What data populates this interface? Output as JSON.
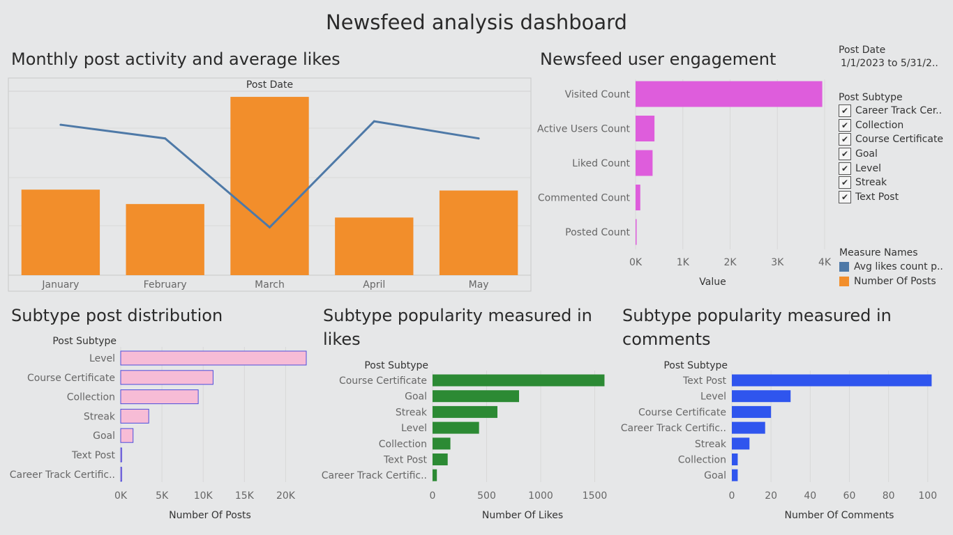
{
  "dashboard_title": "Newsfeed analysis dashboard",
  "filters": {
    "post_date_title": "Post Date",
    "post_date_value": "1/1/2023 to 5/31/2..",
    "subtype_title": "Post Subtype",
    "subtype_items": [
      {
        "label": "Career Track Cer..",
        "checked": true
      },
      {
        "label": "Collection",
        "checked": true
      },
      {
        "label": "Course Certificate",
        "checked": true
      },
      {
        "label": "Goal",
        "checked": true
      },
      {
        "label": "Level",
        "checked": true
      },
      {
        "label": "Streak",
        "checked": true
      },
      {
        "label": "Text Post",
        "checked": true
      }
    ],
    "check_glyph": "✔",
    "measure_names_title": "Measure Names",
    "measure_names": [
      {
        "label": "Avg likes count p..",
        "color": "#4e79a7"
      },
      {
        "label": "Number Of Posts",
        "color": "#f28e2b"
      }
    ]
  },
  "chart_data": [
    {
      "id": "monthly",
      "type": "bar",
      "title": "Monthly post activity and average likes",
      "header": "Post Date",
      "categories": [
        "January",
        "February",
        "March",
        "April",
        "May"
      ],
      "series": [
        {
          "name": "Number Of Posts",
          "values": [
            9500,
            7900,
            19800,
            6400,
            9400
          ],
          "color": "#f28e2b",
          "kind": "bar"
        },
        {
          "name": "Avg likes count p..",
          "values": [
            0.52,
            0.5,
            0.37,
            0.525,
            0.5
          ],
          "color": "#4e79a7",
          "kind": "line"
        }
      ],
      "ylim_bars": [
        0,
        20500
      ],
      "ylim_line": [
        0.3,
        0.57
      ],
      "grid": true
    },
    {
      "id": "engagement",
      "type": "bar",
      "orientation": "horizontal",
      "title": "Newsfeed user engagement",
      "categories": [
        "Visited Count",
        "Active Users Count",
        "Liked Count",
        "Commented Count",
        "Posted Count"
      ],
      "values": [
        3950,
        400,
        360,
        100,
        20
      ],
      "color": "#de5ddc",
      "xlim": [
        0,
        4000
      ],
      "xticks": [
        0,
        1000,
        2000,
        3000,
        4000
      ],
      "xtick_labels": [
        "0K",
        "1K",
        "2K",
        "3K",
        "4K"
      ],
      "xlabel": "Value"
    },
    {
      "id": "posts",
      "type": "bar",
      "orientation": "horizontal",
      "title": "Subtype post distribution",
      "header": "Post Subtype",
      "categories": [
        "Level",
        "Course Certificate",
        "Collection",
        "Streak",
        "Goal",
        "Text Post",
        "Career Track Certific.."
      ],
      "values": [
        22500,
        11200,
        9400,
        3400,
        1500,
        100,
        50
      ],
      "color": "#f7bcd6",
      "border": "#4d4ddb",
      "xlim": [
        0,
        22500
      ],
      "xticks": [
        0,
        5000,
        10000,
        15000,
        20000
      ],
      "xtick_labels": [
        "0K",
        "5K",
        "10K",
        "15K",
        "20K"
      ],
      "xlabel": "Number Of Posts"
    },
    {
      "id": "likes",
      "type": "bar",
      "orientation": "horizontal",
      "title": "Subtype popularity measured in likes",
      "header": "Post Subtype",
      "categories": [
        "Course Certificate",
        "Goal",
        "Streak",
        "Level",
        "Collection",
        "Text Post",
        "Career Track Certific.."
      ],
      "values": [
        1590,
        800,
        600,
        430,
        165,
        140,
        40
      ],
      "color": "#2c8a34",
      "xlim": [
        0,
        1600
      ],
      "xticks": [
        0,
        500,
        1000,
        1500
      ],
      "xtick_labels": [
        "0",
        "500",
        "1000",
        "1500"
      ],
      "xlabel": "Number Of Likes"
    },
    {
      "id": "comments",
      "type": "bar",
      "orientation": "horizontal",
      "title": "Subtype popularity measured in comments",
      "header": "Post Subtype",
      "categories": [
        "Text Post",
        "Level",
        "Course Certificate",
        "Career Track Certific..",
        "Streak",
        "Collection",
        "Goal"
      ],
      "values": [
        102,
        30,
        20,
        17,
        9,
        3,
        3
      ],
      "color": "#2f55ee",
      "xlim": [
        0,
        104
      ],
      "xticks": [
        0,
        20,
        40,
        60,
        80,
        100
      ],
      "xtick_labels": [
        "0",
        "20",
        "40",
        "60",
        "80",
        "100"
      ],
      "xlabel": "Number Of Comments"
    }
  ]
}
